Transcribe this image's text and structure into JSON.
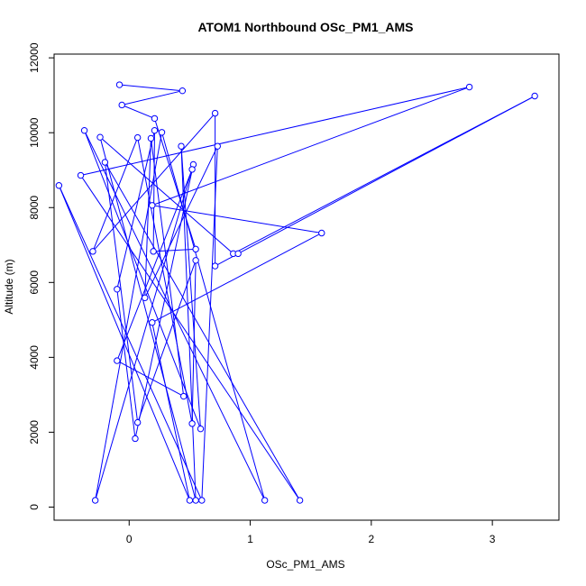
{
  "chart_data": {
    "type": "line",
    "title": "ATOM1 Northbound OSc_PM1_AMS",
    "xlabel": "OSc_PM1_AMS",
    "ylabel": "Altitude (m)",
    "xlim": [
      -0.62,
      3.55
    ],
    "ylim": [
      -350,
      12100
    ],
    "x_ticks": [
      0,
      1,
      2,
      3
    ],
    "y_ticks": [
      0,
      2000,
      4000,
      6000,
      8000,
      10000,
      12000
    ],
    "grid": false,
    "legend": "none",
    "color": "#0000ff",
    "series": [
      {
        "points": [
          [
            -0.08,
            11280
          ],
          [
            0.44,
            11120
          ],
          [
            -0.06,
            10740
          ],
          [
            0.21,
            10380
          ],
          [
            0.55,
            6890
          ],
          [
            0.2,
            6830
          ],
          [
            0.21,
            10060
          ],
          [
            -0.1,
            5820
          ],
          [
            0.05,
            1830
          ],
          [
            0.53,
            9150
          ],
          [
            -0.28,
            180
          ],
          [
            0.27,
            10010
          ],
          [
            1.12,
            180
          ],
          [
            -0.37,
            10060
          ],
          [
            0.59,
            2090
          ],
          [
            0.43,
            9640
          ],
          [
            0.55,
            180
          ],
          [
            -0.24,
            9880
          ],
          [
            0.86,
            6770
          ],
          [
            3.35,
            10980
          ],
          [
            0.9,
            6770
          ],
          [
            0.71,
            6440
          ],
          [
            0.71,
            10520
          ],
          [
            -0.3,
            6830
          ],
          [
            0.07,
            9870
          ],
          [
            0.52,
            2230
          ],
          [
            0.55,
            6590
          ],
          [
            0.07,
            2260
          ],
          [
            -0.2,
            9210
          ],
          [
            1.41,
            180
          ],
          [
            -0.4,
            8860
          ],
          [
            2.81,
            11220
          ],
          [
            0.19,
            8060
          ],
          [
            1.59,
            7320
          ],
          [
            0.19,
            4930
          ],
          [
            0.5,
            180
          ],
          [
            -0.58,
            8590
          ],
          [
            0.6,
            180
          ],
          [
            0.73,
            9640
          ],
          [
            0.13,
            5590
          ],
          [
            0.18,
            9850
          ],
          [
            0.45,
            2960
          ],
          [
            -0.1,
            3910
          ],
          [
            0.52,
            9020
          ]
        ]
      }
    ]
  }
}
